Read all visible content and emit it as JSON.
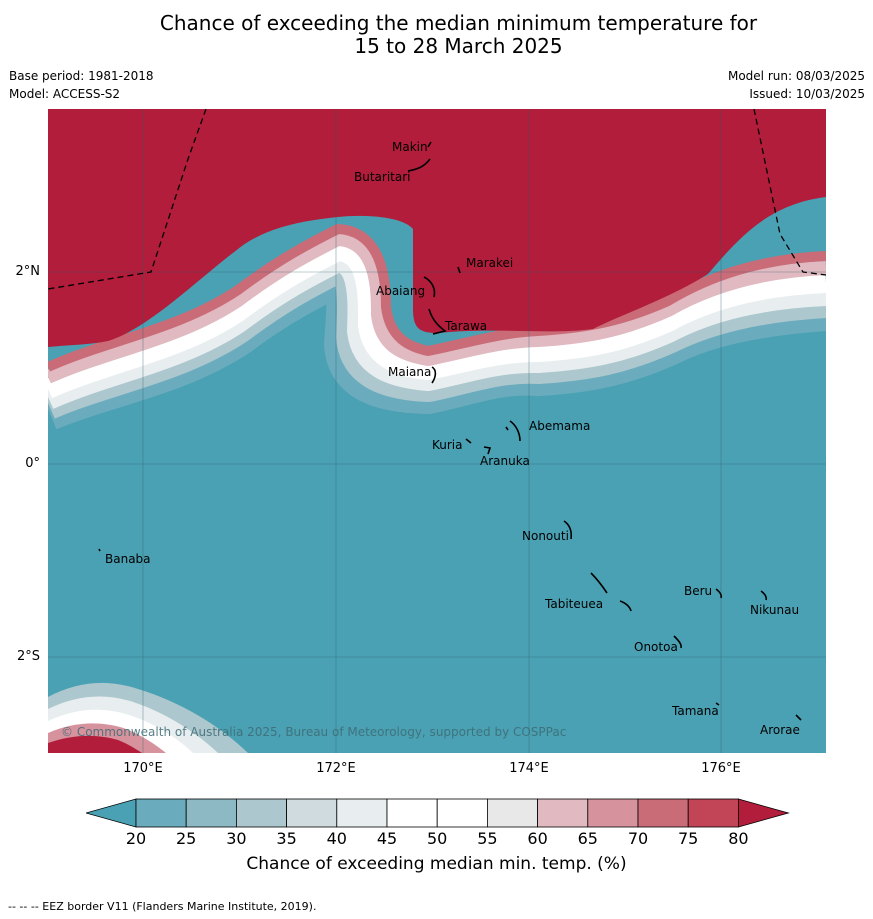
{
  "title_line1": "Chance of exceeding the median minimum temperature for",
  "title_line2": "15 to 28 March 2025",
  "meta": {
    "base_period": "Base period: 1981-2018",
    "model": "Model: ACCESS-S2",
    "model_run": "Model run: 08/03/2025",
    "issued": "Issued: 10/03/2025"
  },
  "map": {
    "lon_labels": [
      "170°E",
      "172°E",
      "174°E",
      "176°E"
    ],
    "lat_labels": [
      "2°N",
      "0°",
      "2°S"
    ],
    "places": [
      {
        "name": "Makin"
      },
      {
        "name": "Butaritari"
      },
      {
        "name": "Marakei"
      },
      {
        "name": "Abaiang"
      },
      {
        "name": "Tarawa"
      },
      {
        "name": "Maiana"
      },
      {
        "name": "Abemama"
      },
      {
        "name": "Kuria"
      },
      {
        "name": "Aranuka"
      },
      {
        "name": "Nonouti"
      },
      {
        "name": "Banaba"
      },
      {
        "name": "Beru"
      },
      {
        "name": "Nikunau"
      },
      {
        "name": "Tabiteuea"
      },
      {
        "name": "Onotoa"
      },
      {
        "name": "Tamana"
      },
      {
        "name": "Arorae"
      }
    ],
    "copyright": "© Commonwealth of Australia 2025, Bureau of Meteorology, supported by COSPPac",
    "colors": {
      "above": "#b11d3a",
      "below": "#4aa1b3",
      "eez_border": "#000000"
    }
  },
  "colorbar": {
    "ticks": [
      "20",
      "25",
      "30",
      "35",
      "40",
      "45",
      "50",
      "55",
      "60",
      "65",
      "70",
      "75",
      "80"
    ],
    "colors": [
      "#4aa1b3",
      "#6aacbd",
      "#8db9c5",
      "#adc7ce",
      "#cfdbdf",
      "#e8eef0",
      "#ffffff",
      "#ffffff",
      "#e8e8e8",
      "#e1b9c1",
      "#d6939d",
      "#ca6c78",
      "#c24457",
      "#b11d3a"
    ],
    "label": "Chance of exceeding median min. temp. (%)"
  },
  "footer": "-- -- -- EEZ border V11 (Flanders Marine Institute, 2019)."
}
